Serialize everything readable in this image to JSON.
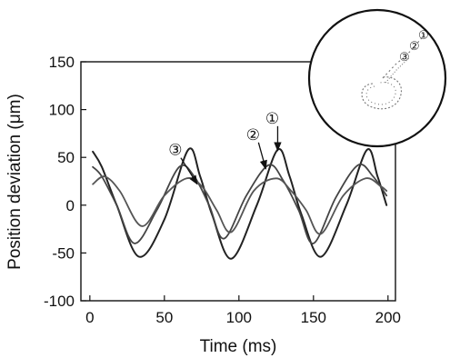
{
  "chart_data": {
    "type": "line",
    "xlabel": "Time (ms)",
    "ylabel": "Position deviation (μm)",
    "xlim": [
      -6,
      205
    ],
    "ylim": [
      -100,
      150
    ],
    "x_ticks": [
      0,
      50,
      100,
      150,
      200
    ],
    "x_tick_labels": [
      "0",
      "50",
      "100",
      "150",
      "200"
    ],
    "y_ticks": [
      -100,
      -50,
      0,
      50,
      100,
      150
    ],
    "y_tick_labels": [
      "-100",
      "-50",
      "0",
      "50",
      "100",
      "150"
    ],
    "grid": false,
    "series": [
      {
        "name": "①",
        "x": [
          2,
          8,
          18,
          33,
          50,
          66,
          74,
          82,
          95,
          112,
          126,
          134,
          142,
          155,
          172,
          186,
          193,
          199
        ],
        "y": [
          56,
          40,
          0,
          -54,
          -15,
          58,
          30,
          -10,
          -56,
          0,
          58,
          30,
          -10,
          -54,
          0,
          58,
          30,
          0
        ]
      },
      {
        "name": "②",
        "x": [
          2,
          8,
          18,
          30,
          45,
          60,
          70,
          80,
          90,
          105,
          120,
          130,
          140,
          150,
          165,
          180,
          190,
          199
        ],
        "y": [
          40,
          30,
          0,
          -40,
          -5,
          40,
          30,
          0,
          -35,
          10,
          42,
          25,
          -5,
          -40,
          8,
          42,
          30,
          10
        ]
      },
      {
        "name": "③",
        "x": [
          2,
          10,
          20,
          35,
          50,
          65,
          75,
          85,
          95,
          110,
          125,
          135,
          145,
          155,
          170,
          185,
          195,
          199
        ],
        "y": [
          22,
          30,
          15,
          -22,
          10,
          28,
          20,
          -5,
          -28,
          15,
          28,
          15,
          -5,
          -30,
          10,
          28,
          20,
          15
        ]
      }
    ],
    "annotations": [
      {
        "text": "①",
        "target_x": 126,
        "target_y": 57
      },
      {
        "text": "②",
        "target_x": 118,
        "target_y": 38
      },
      {
        "text": "③",
        "target_x": 72,
        "target_y": 22
      }
    ],
    "inset": {
      "type": "scatter",
      "labels": [
        "①",
        "②",
        "③"
      ]
    }
  }
}
